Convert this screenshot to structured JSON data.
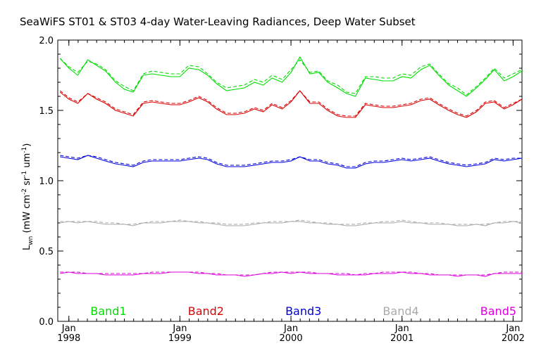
{
  "chart_data": {
    "type": "line",
    "title": "SeaWiFS ST01 & ST03 4-day Water-Leaving Radiances, Deep Water Subset",
    "ylabel_main": "L",
    "ylabel_sub": "wn",
    "ylabel_rest": "(mW cm",
    "ylabel_sup1": "-2",
    "ylabel_mid": " sr",
    "ylabel_sup2": "-1",
    "ylabel_mid2": " um",
    "ylabel_sup3": "-1",
    "ylabel_end": ")",
    "xlim": [
      1997.9,
      2002.08
    ],
    "ylim": [
      0.0,
      2.0
    ],
    "y_ticks": [
      0.0,
      0.5,
      1.0,
      1.5,
      2.0
    ],
    "y_tick_labels": [
      "0.0",
      "0.5",
      "1.0",
      "1.5",
      "2.0"
    ],
    "x_ticks": [
      1998.0,
      1999.0,
      2000.0,
      2001.0,
      2002.0
    ],
    "x_tick_month": [
      "Jan",
      "Jan",
      "Jan",
      "Jan",
      "Jan"
    ],
    "x_tick_year": [
      "1998",
      "1999",
      "2000",
      "2001",
      "2002"
    ],
    "x": [
      1997.92,
      1998.0,
      1998.08,
      1998.17,
      1998.25,
      1998.33,
      1998.42,
      1998.5,
      1998.58,
      1998.67,
      1998.75,
      1998.83,
      1998.92,
      1999.0,
      1999.08,
      1999.17,
      1999.25,
      1999.33,
      1999.42,
      1999.5,
      1999.58,
      1999.67,
      1999.75,
      1999.83,
      1999.92,
      2000.0,
      2000.08,
      2000.17,
      2000.25,
      2000.33,
      2000.42,
      2000.5,
      2000.58,
      2000.67,
      2000.75,
      2000.83,
      2000.92,
      2001.0,
      2001.08,
      2001.17,
      2001.25,
      2001.33,
      2001.42,
      2001.5,
      2001.58,
      2001.67,
      2001.75,
      2001.83,
      2001.92,
      2002.0,
      2002.08
    ],
    "series": [
      {
        "name": "Band1",
        "color": "#00dd00",
        "values": [
          1.87,
          1.8,
          1.75,
          1.86,
          1.82,
          1.78,
          1.7,
          1.65,
          1.63,
          1.75,
          1.76,
          1.75,
          1.74,
          1.74,
          1.8,
          1.79,
          1.75,
          1.69,
          1.64,
          1.65,
          1.66,
          1.7,
          1.68,
          1.73,
          1.7,
          1.77,
          1.88,
          1.76,
          1.77,
          1.7,
          1.66,
          1.62,
          1.6,
          1.73,
          1.72,
          1.71,
          1.71,
          1.74,
          1.73,
          1.79,
          1.82,
          1.75,
          1.68,
          1.64,
          1.6,
          1.66,
          1.72,
          1.79,
          1.71,
          1.74,
          1.78
        ],
        "values_alt": [
          1.87,
          1.81,
          1.77,
          1.85,
          1.83,
          1.79,
          1.71,
          1.67,
          1.64,
          1.76,
          1.78,
          1.77,
          1.76,
          1.76,
          1.82,
          1.81,
          1.76,
          1.7,
          1.66,
          1.67,
          1.68,
          1.72,
          1.7,
          1.75,
          1.72,
          1.79,
          1.86,
          1.77,
          1.78,
          1.71,
          1.68,
          1.63,
          1.62,
          1.74,
          1.74,
          1.73,
          1.73,
          1.76,
          1.75,
          1.81,
          1.83,
          1.76,
          1.69,
          1.66,
          1.61,
          1.67,
          1.73,
          1.8,
          1.73,
          1.76,
          1.79
        ]
      },
      {
        "name": "Band2",
        "color": "#dd0000",
        "values": [
          1.63,
          1.58,
          1.55,
          1.62,
          1.58,
          1.55,
          1.5,
          1.48,
          1.46,
          1.55,
          1.56,
          1.55,
          1.54,
          1.54,
          1.56,
          1.59,
          1.56,
          1.51,
          1.47,
          1.47,
          1.48,
          1.51,
          1.49,
          1.54,
          1.51,
          1.56,
          1.64,
          1.55,
          1.55,
          1.5,
          1.46,
          1.45,
          1.45,
          1.54,
          1.53,
          1.52,
          1.52,
          1.53,
          1.54,
          1.57,
          1.58,
          1.54,
          1.5,
          1.47,
          1.45,
          1.49,
          1.55,
          1.56,
          1.51,
          1.54,
          1.58
        ],
        "values_alt": [
          1.64,
          1.59,
          1.56,
          1.62,
          1.59,
          1.56,
          1.51,
          1.49,
          1.47,
          1.56,
          1.57,
          1.56,
          1.55,
          1.55,
          1.57,
          1.6,
          1.57,
          1.52,
          1.48,
          1.48,
          1.49,
          1.52,
          1.5,
          1.55,
          1.52,
          1.57,
          1.64,
          1.56,
          1.56,
          1.51,
          1.47,
          1.46,
          1.46,
          1.55,
          1.54,
          1.53,
          1.53,
          1.54,
          1.55,
          1.58,
          1.59,
          1.55,
          1.51,
          1.48,
          1.46,
          1.5,
          1.56,
          1.57,
          1.52,
          1.55,
          1.58
        ]
      },
      {
        "name": "Band3",
        "color": "#0000dd",
        "values": [
          1.17,
          1.16,
          1.15,
          1.18,
          1.16,
          1.14,
          1.12,
          1.11,
          1.1,
          1.13,
          1.14,
          1.14,
          1.14,
          1.14,
          1.15,
          1.16,
          1.15,
          1.12,
          1.1,
          1.1,
          1.1,
          1.11,
          1.12,
          1.13,
          1.13,
          1.14,
          1.17,
          1.14,
          1.14,
          1.12,
          1.11,
          1.09,
          1.09,
          1.12,
          1.13,
          1.13,
          1.14,
          1.15,
          1.14,
          1.15,
          1.16,
          1.14,
          1.12,
          1.11,
          1.1,
          1.11,
          1.12,
          1.15,
          1.14,
          1.15,
          1.16
        ],
        "values_alt": [
          1.18,
          1.17,
          1.16,
          1.18,
          1.17,
          1.15,
          1.13,
          1.12,
          1.11,
          1.14,
          1.15,
          1.15,
          1.15,
          1.15,
          1.16,
          1.17,
          1.16,
          1.13,
          1.11,
          1.11,
          1.11,
          1.12,
          1.13,
          1.14,
          1.14,
          1.15,
          1.17,
          1.15,
          1.15,
          1.13,
          1.12,
          1.1,
          1.1,
          1.13,
          1.14,
          1.14,
          1.15,
          1.16,
          1.15,
          1.16,
          1.17,
          1.15,
          1.13,
          1.12,
          1.11,
          1.12,
          1.13,
          1.16,
          1.15,
          1.16,
          1.16
        ]
      },
      {
        "name": "Band4",
        "color": "#aaaaaa",
        "values": [
          0.7,
          0.71,
          0.7,
          0.71,
          0.7,
          0.69,
          0.69,
          0.69,
          0.68,
          0.7,
          0.7,
          0.7,
          0.71,
          0.71,
          0.71,
          0.7,
          0.7,
          0.69,
          0.68,
          0.68,
          0.68,
          0.69,
          0.7,
          0.7,
          0.7,
          0.71,
          0.71,
          0.7,
          0.7,
          0.69,
          0.69,
          0.68,
          0.68,
          0.69,
          0.7,
          0.7,
          0.7,
          0.71,
          0.7,
          0.7,
          0.69,
          0.69,
          0.69,
          0.68,
          0.68,
          0.69,
          0.68,
          0.7,
          0.7,
          0.71,
          0.7
        ],
        "values_alt": [
          0.71,
          0.71,
          0.71,
          0.71,
          0.71,
          0.7,
          0.7,
          0.69,
          0.69,
          0.7,
          0.71,
          0.71,
          0.71,
          0.72,
          0.71,
          0.71,
          0.7,
          0.7,
          0.69,
          0.69,
          0.69,
          0.7,
          0.7,
          0.71,
          0.71,
          0.71,
          0.72,
          0.71,
          0.7,
          0.7,
          0.69,
          0.69,
          0.69,
          0.7,
          0.7,
          0.71,
          0.71,
          0.72,
          0.71,
          0.7,
          0.7,
          0.7,
          0.69,
          0.69,
          0.69,
          0.69,
          0.69,
          0.7,
          0.71,
          0.71,
          0.71
        ]
      },
      {
        "name": "Band5",
        "color": "#dd00dd",
        "values": [
          0.34,
          0.35,
          0.34,
          0.34,
          0.34,
          0.33,
          0.33,
          0.33,
          0.33,
          0.34,
          0.34,
          0.34,
          0.35,
          0.35,
          0.35,
          0.34,
          0.34,
          0.33,
          0.33,
          0.33,
          0.32,
          0.33,
          0.34,
          0.34,
          0.35,
          0.34,
          0.35,
          0.34,
          0.34,
          0.34,
          0.33,
          0.33,
          0.33,
          0.33,
          0.34,
          0.34,
          0.34,
          0.35,
          0.34,
          0.34,
          0.33,
          0.33,
          0.33,
          0.32,
          0.33,
          0.33,
          0.32,
          0.34,
          0.34,
          0.34,
          0.34
        ],
        "values_alt": [
          0.35,
          0.35,
          0.35,
          0.34,
          0.34,
          0.34,
          0.34,
          0.34,
          0.34,
          0.34,
          0.35,
          0.35,
          0.35,
          0.35,
          0.35,
          0.35,
          0.34,
          0.34,
          0.33,
          0.33,
          0.33,
          0.33,
          0.34,
          0.35,
          0.35,
          0.35,
          0.35,
          0.35,
          0.34,
          0.34,
          0.34,
          0.34,
          0.33,
          0.34,
          0.34,
          0.35,
          0.35,
          0.35,
          0.35,
          0.34,
          0.34,
          0.33,
          0.33,
          0.33,
          0.33,
          0.33,
          0.33,
          0.34,
          0.35,
          0.35,
          0.35
        ]
      }
    ]
  }
}
